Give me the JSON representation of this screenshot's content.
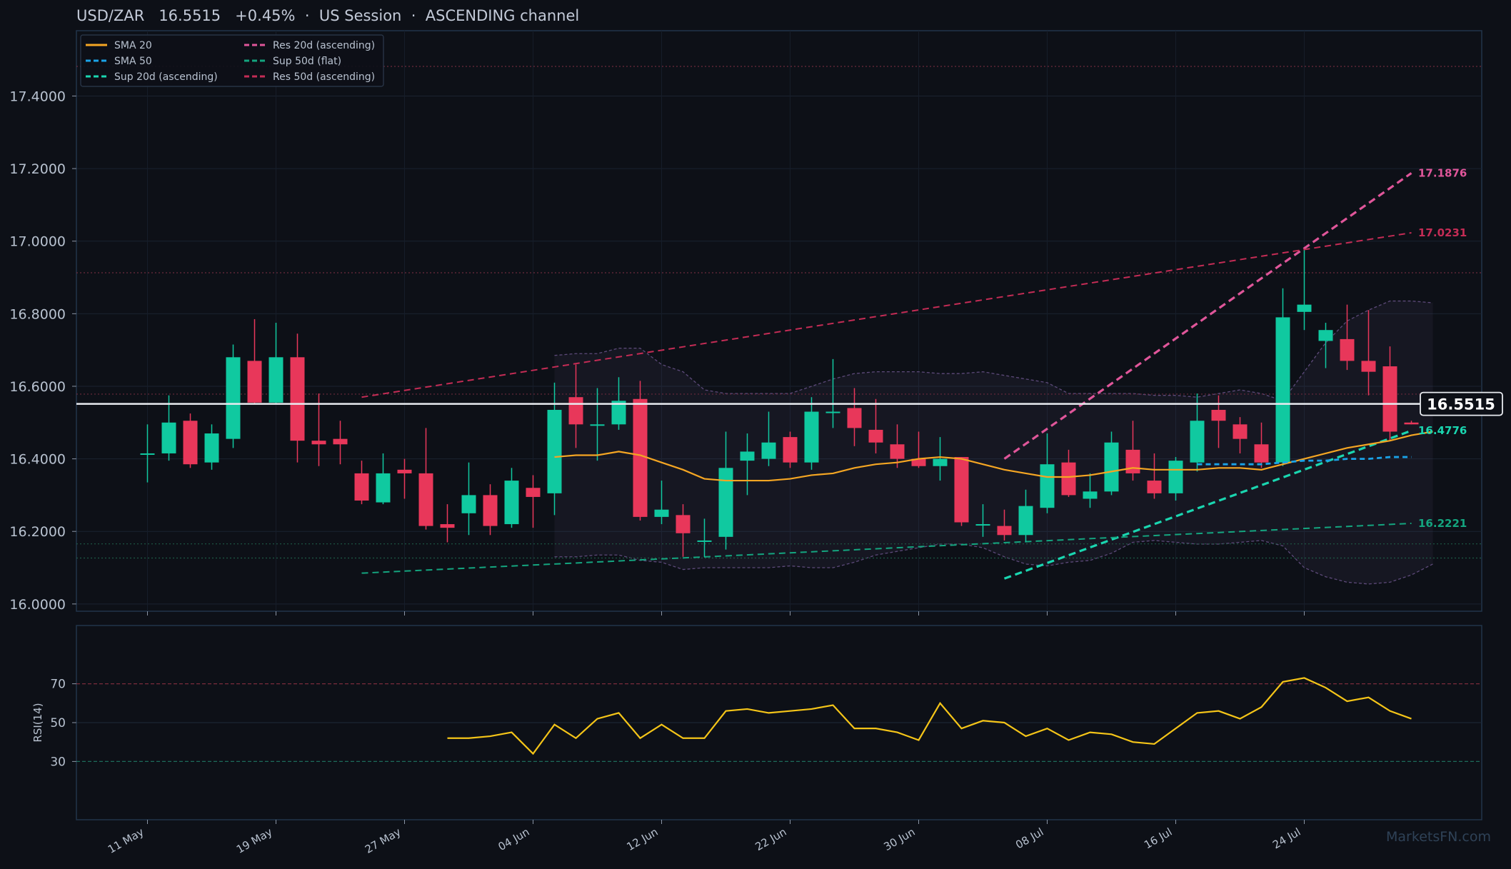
{
  "header": {
    "title": "USD/ZAR   16.5515   +0.45%  ·  US Session  ·  ASCENDING channel"
  },
  "watermark": "MarketsFN.com",
  "colors": {
    "background": "#0d1017",
    "panel_border": "#22344a",
    "up": "#10c9a0",
    "down": "#e8375a",
    "sma20": "#f5a623",
    "sma50": "#1aa3e8",
    "sup20": "#1ad6b0",
    "sup50": "#14a57f",
    "res20": "#e0569a",
    "res50": "#c42c55",
    "rsi": "#f5c518",
    "text": "#b8c2d0"
  },
  "chart_data": [
    {
      "type": "candlestick",
      "title": "USD/ZAR   16.5515   +0.45%  ·  US Session  ·  ASCENDING channel",
      "ylim": [
        15.98,
        17.58
      ],
      "y_ticks": [
        "16.0000",
        "16.2000",
        "16.4000",
        "16.6000",
        "16.8000",
        "17.0000",
        "17.2000",
        "17.4000"
      ],
      "x_ticks": [
        {
          "index": 0,
          "label": "11 May"
        },
        {
          "index": 6,
          "label": "19 May"
        },
        {
          "index": 12,
          "label": "27 May"
        },
        {
          "index": 18,
          "label": "04 Jun"
        },
        {
          "index": 24,
          "label": "12 Jun"
        },
        {
          "index": 30,
          "label": "22 Jun"
        },
        {
          "index": 36,
          "label": "30 Jun"
        },
        {
          "index": 42,
          "label": "08 Jul"
        },
        {
          "index": 48,
          "label": "16 Jul"
        },
        {
          "index": 54,
          "label": "24 Jul"
        }
      ],
      "candles": [
        {
          "o": 16.415,
          "h": 16.495,
          "l": 16.335,
          "c": 16.415
        },
        {
          "o": 16.415,
          "h": 16.575,
          "l": 16.395,
          "c": 16.5
        },
        {
          "o": 16.505,
          "h": 16.525,
          "l": 16.375,
          "c": 16.385
        },
        {
          "o": 16.39,
          "h": 16.495,
          "l": 16.37,
          "c": 16.47
        },
        {
          "o": 16.455,
          "h": 16.715,
          "l": 16.43,
          "c": 16.68
        },
        {
          "o": 16.67,
          "h": 16.785,
          "l": 16.55,
          "c": 16.555
        },
        {
          "o": 16.555,
          "h": 16.775,
          "l": 16.55,
          "c": 16.68
        },
        {
          "o": 16.68,
          "h": 16.745,
          "l": 16.39,
          "c": 16.45
        },
        {
          "o": 16.45,
          "h": 16.58,
          "l": 16.38,
          "c": 16.44
        },
        {
          "o": 16.455,
          "h": 16.505,
          "l": 16.385,
          "c": 16.44
        },
        {
          "o": 16.36,
          "h": 16.395,
          "l": 16.275,
          "c": 16.285
        },
        {
          "o": 16.28,
          "h": 16.415,
          "l": 16.275,
          "c": 16.36
        },
        {
          "o": 16.37,
          "h": 16.4,
          "l": 16.29,
          "c": 16.36
        },
        {
          "o": 16.36,
          "h": 16.485,
          "l": 16.205,
          "c": 16.215
        },
        {
          "o": 16.22,
          "h": 16.275,
          "l": 16.17,
          "c": 16.21
        },
        {
          "o": 16.25,
          "h": 16.39,
          "l": 16.19,
          "c": 16.3
        },
        {
          "o": 16.3,
          "h": 16.33,
          "l": 16.19,
          "c": 16.215
        },
        {
          "o": 16.22,
          "h": 16.375,
          "l": 16.21,
          "c": 16.34
        },
        {
          "o": 16.32,
          "h": 16.355,
          "l": 16.21,
          "c": 16.295
        },
        {
          "o": 16.305,
          "h": 16.61,
          "l": 16.245,
          "c": 16.535
        },
        {
          "o": 16.57,
          "h": 16.66,
          "l": 16.43,
          "c": 16.495
        },
        {
          "o": 16.495,
          "h": 16.595,
          "l": 16.395,
          "c": 16.495
        },
        {
          "o": 16.495,
          "h": 16.625,
          "l": 16.48,
          "c": 16.56
        },
        {
          "o": 16.565,
          "h": 16.615,
          "l": 16.23,
          "c": 16.24
        },
        {
          "o": 16.24,
          "h": 16.34,
          "l": 16.22,
          "c": 16.26
        },
        {
          "o": 16.245,
          "h": 16.275,
          "l": 16.13,
          "c": 16.195
        },
        {
          "o": 16.175,
          "h": 16.235,
          "l": 16.13,
          "c": 16.175
        },
        {
          "o": 16.185,
          "h": 16.475,
          "l": 16.15,
          "c": 16.375
        },
        {
          "o": 16.395,
          "h": 16.47,
          "l": 16.3,
          "c": 16.42
        },
        {
          "o": 16.4,
          "h": 16.53,
          "l": 16.38,
          "c": 16.445
        },
        {
          "o": 16.46,
          "h": 16.475,
          "l": 16.375,
          "c": 16.39
        },
        {
          "o": 16.39,
          "h": 16.57,
          "l": 16.37,
          "c": 16.53
        },
        {
          "o": 16.53,
          "h": 16.675,
          "l": 16.485,
          "c": 16.53
        },
        {
          "o": 16.54,
          "h": 16.595,
          "l": 16.435,
          "c": 16.485
        },
        {
          "o": 16.48,
          "h": 16.565,
          "l": 16.415,
          "c": 16.445
        },
        {
          "o": 16.44,
          "h": 16.495,
          "l": 16.375,
          "c": 16.4
        },
        {
          "o": 16.4,
          "h": 16.475,
          "l": 16.375,
          "c": 16.38
        },
        {
          "o": 16.38,
          "h": 16.46,
          "l": 16.34,
          "c": 16.4
        },
        {
          "o": 16.405,
          "h": 16.405,
          "l": 16.215,
          "c": 16.225
        },
        {
          "o": 16.22,
          "h": 16.275,
          "l": 16.185,
          "c": 16.22
        },
        {
          "o": 16.215,
          "h": 16.26,
          "l": 16.175,
          "c": 16.19
        },
        {
          "o": 16.19,
          "h": 16.315,
          "l": 16.17,
          "c": 16.27
        },
        {
          "o": 16.265,
          "h": 16.47,
          "l": 16.25,
          "c": 16.385
        },
        {
          "o": 16.39,
          "h": 16.425,
          "l": 16.295,
          "c": 16.3
        },
        {
          "o": 16.29,
          "h": 16.36,
          "l": 16.265,
          "c": 16.31
        },
        {
          "o": 16.31,
          "h": 16.475,
          "l": 16.3,
          "c": 16.445
        },
        {
          "o": 16.425,
          "h": 16.505,
          "l": 16.34,
          "c": 16.36
        },
        {
          "o": 16.34,
          "h": 16.415,
          "l": 16.29,
          "c": 16.305
        },
        {
          "o": 16.305,
          "h": 16.405,
          "l": 16.285,
          "c": 16.395
        },
        {
          "o": 16.39,
          "h": 16.58,
          "l": 16.365,
          "c": 16.505
        },
        {
          "o": 16.535,
          "h": 16.575,
          "l": 16.43,
          "c": 16.505
        },
        {
          "o": 16.495,
          "h": 16.515,
          "l": 16.415,
          "c": 16.455
        },
        {
          "o": 16.44,
          "h": 16.5,
          "l": 16.375,
          "c": 16.39
        },
        {
          "o": 16.39,
          "h": 16.87,
          "l": 16.38,
          "c": 16.79
        },
        {
          "o": 16.805,
          "h": 16.975,
          "l": 16.755,
          "c": 16.825
        },
        {
          "o": 16.725,
          "h": 16.775,
          "l": 16.65,
          "c": 16.755
        },
        {
          "o": 16.73,
          "h": 16.825,
          "l": 16.645,
          "c": 16.67
        },
        {
          "o": 16.67,
          "h": 16.81,
          "l": 16.575,
          "c": 16.64
        },
        {
          "o": 16.655,
          "h": 16.71,
          "l": 16.45,
          "c": 16.475
        },
        {
          "o": 16.5,
          "h": 16.505,
          "l": 16.495,
          "c": 16.495
        }
      ],
      "series": [
        {
          "name": "SMA 20",
          "start": 19,
          "values": [
            16.405,
            16.41,
            16.41,
            16.42,
            16.41,
            16.39,
            16.37,
            16.345,
            16.34,
            16.34,
            16.34,
            16.345,
            16.355,
            16.36,
            16.375,
            16.385,
            16.39,
            16.4,
            16.405,
            16.4,
            16.385,
            16.37,
            16.36,
            16.35,
            16.35,
            16.355,
            16.365,
            16.375,
            16.37,
            16.37,
            16.37,
            16.375,
            16.375,
            16.37,
            16.385,
            16.4,
            16.415,
            16.43,
            16.44,
            16.45,
            16.465,
            16.475
          ]
        },
        {
          "name": "SMA 50",
          "start": 49,
          "values": [
            16.385,
            16.385,
            16.385,
            16.385,
            16.39,
            16.395,
            16.395,
            16.4,
            16.4,
            16.405,
            16.405
          ]
        },
        {
          "name": "Sup 20d (ascending)",
          "start": 40,
          "end": 59,
          "y_start": 16.07,
          "y_end": 16.4776
        },
        {
          "name": "Sup 50d (flat)",
          "start": 10,
          "end": 59,
          "y_start": 16.085,
          "y_end": 16.2221
        },
        {
          "name": "Res 20d (ascending)",
          "start": 40,
          "end": 59,
          "y_start": 16.4,
          "y_end": 17.1876
        },
        {
          "name": "Res 50d (ascending)",
          "start": 10,
          "end": 59,
          "y_start": 16.57,
          "y_end": 17.0231
        }
      ],
      "bollinger": {
        "start": 19,
        "upper": [
          16.685,
          16.69,
          16.69,
          16.705,
          16.705,
          16.66,
          16.64,
          16.59,
          16.58,
          16.58,
          16.58,
          16.58,
          16.6,
          16.62,
          16.635,
          16.64,
          16.64,
          16.64,
          16.635,
          16.635,
          16.64,
          16.63,
          16.62,
          16.61,
          16.58,
          16.58,
          16.58,
          16.58,
          16.575,
          16.575,
          16.57,
          16.58,
          16.59,
          16.58,
          16.56,
          16.64,
          16.72,
          16.78,
          16.81,
          16.835,
          16.835,
          16.83
        ],
        "lower": [
          16.13,
          16.13,
          16.135,
          16.135,
          16.12,
          16.115,
          16.095,
          16.1,
          16.1,
          16.1,
          16.1,
          16.105,
          16.1,
          16.1,
          16.115,
          16.135,
          16.145,
          16.155,
          16.165,
          16.165,
          16.155,
          16.13,
          16.11,
          16.105,
          16.115,
          16.12,
          16.14,
          16.17,
          16.175,
          16.17,
          16.165,
          16.165,
          16.17,
          16.175,
          16.16,
          16.1,
          16.075,
          16.06,
          16.055,
          16.06,
          16.08,
          16.11
        ]
      },
      "h_levels": [
        16.1266,
        16.1656,
        16.5784,
        16.9129,
        17.4816
      ],
      "current_price": {
        "value": 16.5515,
        "label": "16.5515"
      },
      "end_labels": [
        {
          "value": 17.1876,
          "label": "17.1876",
          "color": "#e0569a"
        },
        {
          "value": 17.0231,
          "label": "17.0231",
          "color": "#c42c55"
        },
        {
          "value": 16.4776,
          "label": "16.4776",
          "color": "#1ad6b0"
        },
        {
          "value": 16.2221,
          "label": "16.2221",
          "color": "#14a57f"
        }
      ],
      "legend": {
        "placement": "top-left",
        "items": [
          {
            "label": "SMA 20",
            "color": "#f5a623",
            "style": "solid"
          },
          {
            "label": "SMA 50",
            "color": "#1aa3e8",
            "style": "dashed"
          },
          {
            "label": "Sup 20d (ascending)",
            "color": "#1ad6b0",
            "style": "dashed"
          },
          {
            "label": "Res 20d (ascending)",
            "color": "#e0569a",
            "style": "dashed"
          },
          {
            "label": "Sup 50d (flat)",
            "color": "#14a57f",
            "style": "dashed"
          },
          {
            "label": "Res 50d (ascending)",
            "color": "#c42c55",
            "style": "dashed"
          }
        ]
      }
    },
    {
      "type": "line",
      "ylabel": "RSI(14)",
      "ylim": [
        0,
        100
      ],
      "y_ticks": [
        "30",
        "50",
        "70"
      ],
      "levels": [
        30,
        50,
        70
      ],
      "series": [
        {
          "name": "RSI(14)",
          "start": 14,
          "values": [
            42,
            42,
            43,
            45,
            34,
            49,
            42,
            52,
            55,
            42,
            49,
            42,
            42,
            56,
            57,
            55,
            56,
            57,
            59,
            47,
            47,
            45,
            41,
            60,
            47,
            51,
            50,
            43,
            47,
            41,
            45,
            44,
            40,
            39,
            47,
            55,
            56,
            52,
            58,
            71,
            73,
            68,
            61,
            63,
            56,
            52
          ]
        }
      ]
    }
  ]
}
